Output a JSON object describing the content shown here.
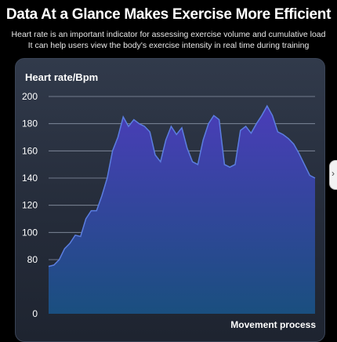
{
  "header": {
    "title": "Data At a Glance Makes Exercise More Efficient",
    "subtitle_line1": "Heart rate is an important indicator for assessing exercise volume and cumulative load",
    "subtitle_line2": "It can help users view the body's exercise intensity in real time during training"
  },
  "colors": {
    "area_top": "#4a3db8",
    "area_bottom": "#1a4f7f",
    "line": "#5b7ee0",
    "grid": "#8a93a6"
  },
  "chart_data": {
    "type": "area",
    "title": "",
    "ylabel": "Heart rate/Bpm",
    "xlabel": "Movement process",
    "y_ticks": [
      "200",
      "180",
      "160",
      "140",
      "120",
      "100",
      "80",
      "0"
    ],
    "x": [
      0,
      2,
      4,
      6,
      8,
      10,
      12,
      14,
      16,
      18,
      20,
      22,
      24,
      26,
      28,
      30,
      32,
      34,
      36,
      38,
      40,
      42,
      44,
      46,
      48,
      50,
      52,
      54,
      56,
      58,
      60,
      62,
      64,
      66,
      68,
      70,
      72,
      74,
      76,
      78,
      80,
      82,
      84,
      86,
      88,
      90,
      92,
      94,
      96,
      98,
      100
    ],
    "values": [
      70,
      72,
      80,
      88,
      92,
      98,
      97,
      110,
      116,
      116,
      127,
      140,
      160,
      170,
      185,
      178,
      183,
      180,
      178,
      174,
      157,
      152,
      168,
      178,
      172,
      177,
      162,
      152,
      150,
      168,
      180,
      186,
      183,
      150,
      148,
      150,
      175,
      178,
      173,
      180,
      186,
      193,
      186,
      174,
      172,
      169,
      165,
      158,
      150,
      142,
      140
    ],
    "ylim": [
      0,
      200
    ],
    "grid": true,
    "legend": "none"
  }
}
